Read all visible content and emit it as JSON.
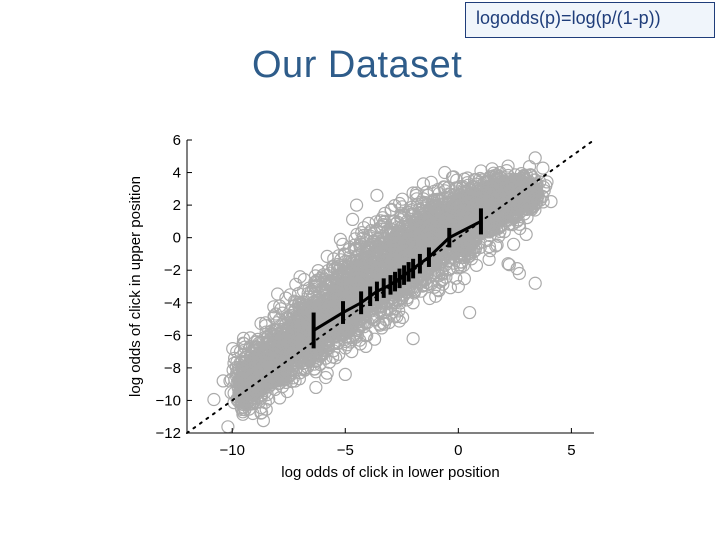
{
  "header": {
    "formula": "logodds(p)=log(p/(1-p))",
    "title": "Our Dataset"
  },
  "chart_data": {
    "type": "scatter",
    "xlabel": "log odds of click in lower position",
    "ylabel": "log odds of click in upper position",
    "xlim": [
      -12,
      6
    ],
    "ylim": [
      -12,
      6
    ],
    "xticks": [
      -10,
      -5,
      0,
      5
    ],
    "xtick_labels": [
      "−10",
      "−5",
      "0",
      "5"
    ],
    "yticks": [
      -12,
      -10,
      -8,
      -6,
      -4,
      -2,
      0,
      2,
      4,
      6
    ],
    "ytick_labels": [
      "−12",
      "−10",
      "−8",
      "−6",
      "−4",
      "−2",
      "0",
      "2",
      "4",
      "6"
    ],
    "grid": false,
    "reference_line": {
      "style": "dotted",
      "x": [
        -12,
        6
      ],
      "y": [
        -12,
        6
      ]
    },
    "series": [
      {
        "kind": "scatter",
        "marker": "open-circle",
        "color": "#aaaaaa",
        "points": [
          [
            -10.4,
            -8.8
          ],
          [
            -10.1,
            -8.8
          ],
          [
            -9.8,
            -7.0
          ],
          [
            -9.6,
            -10.0
          ],
          [
            -9.3,
            -9.6
          ],
          [
            -9.0,
            -8.2
          ],
          [
            -8.8,
            -9.0
          ],
          [
            -8.5,
            -5.8
          ],
          [
            -8.3,
            -7.5
          ],
          [
            -8.0,
            -8.8
          ],
          [
            -7.9,
            -4.2
          ],
          [
            -7.6,
            -6.3
          ],
          [
            -7.4,
            -7.8
          ],
          [
            -7.2,
            -5.0
          ],
          [
            -7.0,
            -8.3
          ],
          [
            -6.8,
            -5.5
          ],
          [
            -6.6,
            -3.1
          ],
          [
            -6.4,
            -6.7
          ],
          [
            -6.2,
            -4.4
          ],
          [
            -6.0,
            -7.2
          ],
          [
            -5.8,
            -2.3
          ],
          [
            -5.6,
            -5.2
          ],
          [
            -5.4,
            -6.4
          ],
          [
            -5.2,
            -3.6
          ],
          [
            -5.0,
            -4.6
          ],
          [
            -4.8,
            -0.6
          ],
          [
            -4.6,
            -6.0
          ],
          [
            -4.4,
            -2.8
          ],
          [
            -4.2,
            -4.9
          ],
          [
            -4.0,
            -1.5
          ],
          [
            -3.8,
            -3.7
          ],
          [
            -3.6,
            2.6
          ],
          [
            -3.5,
            -5.3
          ],
          [
            -3.3,
            0.8
          ],
          [
            -3.1,
            -2.2
          ],
          [
            -3.0,
            -4.4
          ],
          [
            -2.8,
            -1.1
          ],
          [
            -2.6,
            2.1
          ],
          [
            -2.4,
            -3.2
          ],
          [
            -2.2,
            -0.3
          ],
          [
            -2.0,
            -4.0
          ],
          [
            -1.8,
            1.2
          ],
          [
            -1.6,
            -2.6
          ],
          [
            -1.4,
            2.8
          ],
          [
            -1.2,
            -1.3
          ],
          [
            -1.0,
            -3.6
          ],
          [
            -0.8,
            0.4
          ],
          [
            -0.6,
            3.1
          ],
          [
            -0.4,
            -1.9
          ],
          [
            -0.2,
            1.6
          ],
          [
            0.0,
            -3.0
          ],
          [
            0.2,
            2.5
          ],
          [
            0.4,
            -0.5
          ],
          [
            0.6,
            3.0
          ],
          [
            0.8,
            -1.7
          ],
          [
            1.0,
            1.1
          ],
          [
            1.2,
            2.9
          ],
          [
            1.4,
            -0.8
          ],
          [
            1.6,
            3.2
          ],
          [
            1.8,
            0.6
          ],
          [
            2.0,
            2.2
          ],
          [
            2.2,
            -1.6
          ],
          [
            2.4,
            3.4
          ],
          [
            2.6,
            1.0
          ],
          [
            2.8,
            2.6
          ],
          [
            3.0,
            0.2
          ],
          [
            3.2,
            1.8
          ],
          [
            3.4,
            -2.8
          ],
          [
            3.4,
            4.9
          ],
          [
            2.7,
            -2.2
          ],
          [
            2.6,
            -1.9
          ],
          [
            -6.3,
            -9.2
          ],
          [
            -5.0,
            -8.4
          ],
          [
            -2.0,
            -6.2
          ],
          [
            0.5,
            -4.6
          ],
          [
            -7.0,
            -2.4
          ],
          [
            -4.5,
            2.0
          ],
          [
            -1.2,
            3.4
          ],
          [
            1.0,
            4.1
          ],
          [
            2.2,
            4.4
          ]
        ],
        "cloud": [
          [
            -9.3,
            -9.0,
            0.55,
            1.5
          ],
          [
            -8.5,
            -8.0,
            0.9,
            1.6
          ],
          [
            -7.6,
            -6.8,
            1.0,
            1.8
          ],
          [
            -6.8,
            -5.9,
            1.0,
            2.0
          ],
          [
            -6.0,
            -5.0,
            1.0,
            2.1
          ],
          [
            -5.2,
            -4.2,
            1.0,
            2.3
          ],
          [
            -4.4,
            -3.2,
            1.0,
            2.6
          ],
          [
            -3.6,
            -2.4,
            1.0,
            2.7
          ],
          [
            -2.8,
            -1.6,
            1.0,
            2.6
          ],
          [
            -2.0,
            -0.8,
            1.0,
            2.5
          ],
          [
            -1.2,
            -0.1,
            1.0,
            2.4
          ],
          [
            -0.4,
            0.6,
            1.0,
            2.3
          ],
          [
            0.4,
            1.2,
            1.0,
            2.1
          ],
          [
            1.2,
            1.8,
            1.0,
            1.8
          ],
          [
            2.0,
            2.3,
            1.0,
            1.4
          ],
          [
            2.8,
            2.8,
            0.7,
            1.0
          ]
        ]
      },
      {
        "kind": "errorbar-line",
        "color": "#000000",
        "x": [
          -6.4,
          -5.1,
          -4.3,
          -3.9,
          -3.6,
          -3.3,
          -3.0,
          -2.8,
          -2.6,
          -2.4,
          -2.2,
          -2.0,
          -1.7,
          -1.3,
          -0.4,
          1.0
        ],
        "y": [
          -5.7,
          -4.6,
          -4.0,
          -3.6,
          -3.3,
          -3.1,
          -2.9,
          -2.7,
          -2.5,
          -2.3,
          -2.1,
          -1.9,
          -1.6,
          -1.2,
          0.0,
          1.0
        ],
        "err": [
          1.1,
          0.7,
          0.7,
          0.6,
          0.6,
          0.6,
          0.6,
          0.6,
          0.6,
          0.6,
          0.6,
          0.6,
          0.6,
          0.6,
          0.6,
          0.8
        ]
      }
    ]
  }
}
